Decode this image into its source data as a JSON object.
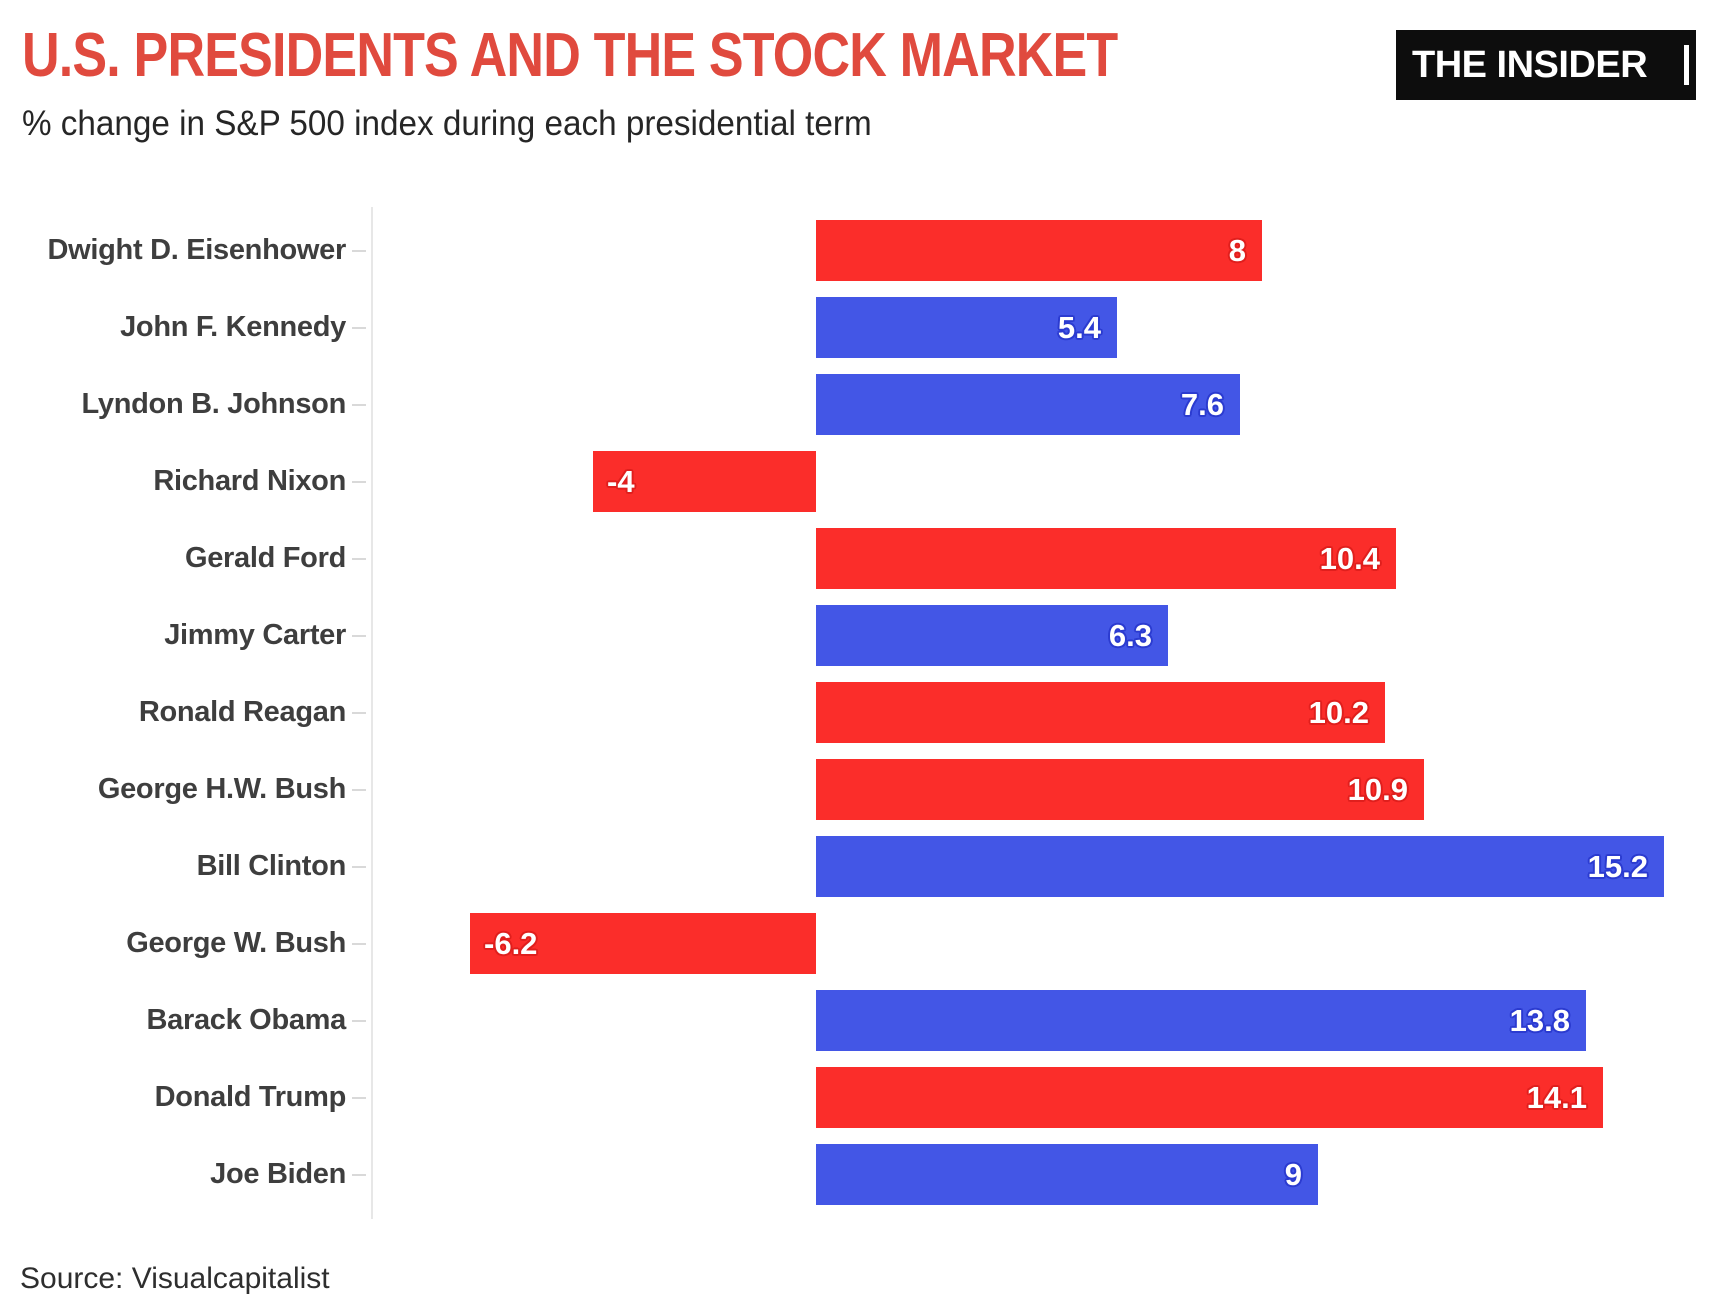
{
  "header": {
    "title": "U.S. PRESIDENTS AND THE STOCK MARKET",
    "subtitle": "% change in S&P 500 index during each presidential term",
    "logo_text": "THE INSIDER"
  },
  "footer": {
    "source": "Source: Visualcapitalist"
  },
  "colors": {
    "background": "#ffffff",
    "title_red": "#e04a3e",
    "subtitle_gray": "#262626",
    "label_gray": "#3e3e3e",
    "axis_line": "#e7e7e7",
    "tick": "#d9d9d9",
    "logo_bg": "#0d0d0d",
    "logo_text": "#ffffff",
    "value_text": "#ffffff"
  },
  "chart_data": {
    "type": "bar",
    "orientation": "horizontal",
    "title": "U.S. PRESIDENTS AND THE STOCK MARKET",
    "subtitle": "% change in S&P 500 index during each presidential term",
    "xlabel": "",
    "ylabel": "",
    "grid": false,
    "legend": false,
    "approx_value_range": [
      -8,
      16.4
    ],
    "party_colors": {
      "republican": "#fb2d2a",
      "democrat": "#4356e6"
    },
    "party_halo_colors": {
      "republican": "#e01f1d",
      "democrat": "#2b3bd0"
    },
    "bars": [
      {
        "label": "Dwight D. Eisenhower",
        "value": 8,
        "value_label": "8",
        "party": "republican"
      },
      {
        "label": "John F. Kennedy",
        "value": 5.4,
        "value_label": "5.4",
        "party": "democrat"
      },
      {
        "label": "Lyndon B. Johnson",
        "value": 7.6,
        "value_label": "7.6",
        "party": "democrat"
      },
      {
        "label": "Richard Nixon",
        "value": -4,
        "value_label": "-4",
        "party": "republican"
      },
      {
        "label": "Gerald Ford",
        "value": 10.4,
        "value_label": "10.4",
        "party": "republican"
      },
      {
        "label": "Jimmy Carter",
        "value": 6.3,
        "value_label": "6.3",
        "party": "democrat"
      },
      {
        "label": "Ronald Reagan",
        "value": 10.2,
        "value_label": "10.2",
        "party": "republican"
      },
      {
        "label": "George H.W. Bush",
        "value": 10.9,
        "value_label": "10.9",
        "party": "republican"
      },
      {
        "label": "Bill Clinton",
        "value": 15.2,
        "value_label": "15.2",
        "party": "democrat"
      },
      {
        "label": "George W. Bush",
        "value": -6.2,
        "value_label": "-6.2",
        "party": "republican"
      },
      {
        "label": "Barack Obama",
        "value": 13.8,
        "value_label": "13.8",
        "party": "democrat"
      },
      {
        "label": "Donald Trump",
        "value": 14.1,
        "value_label": "14.1",
        "party": "republican"
      },
      {
        "label": "Joe Biden",
        "value": 9,
        "value_label": "9",
        "party": "democrat"
      }
    ]
  }
}
